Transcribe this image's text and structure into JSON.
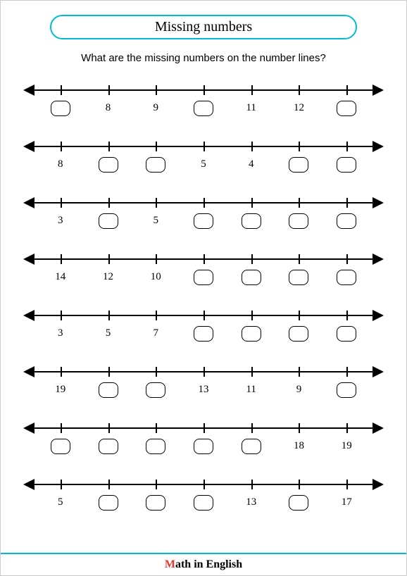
{
  "title": "Missing numbers",
  "question": "What are the missing numbers on the number lines?",
  "footer_m": "M",
  "footer_rest": "ath in English",
  "layout": {
    "tick_positions_pct": [
      10,
      23.33,
      36.67,
      50,
      63.33,
      76.67,
      90
    ],
    "line_color": "#000000",
    "border_color": "#00bcd4",
    "blank_border_radius": 8
  },
  "lines": [
    {
      "values": [
        null,
        "8",
        "9",
        null,
        "11",
        "12",
        null
      ]
    },
    {
      "values": [
        "8",
        null,
        null,
        "5",
        "4",
        null,
        null
      ]
    },
    {
      "values": [
        "3",
        null,
        "5",
        null,
        null,
        null,
        null
      ]
    },
    {
      "values": [
        "14",
        "12",
        "10",
        null,
        null,
        null,
        null
      ]
    },
    {
      "values": [
        "3",
        "5",
        "7",
        null,
        null,
        null,
        null
      ]
    },
    {
      "values": [
        "19",
        null,
        null,
        "13",
        "11",
        "9",
        null
      ]
    },
    {
      "values": [
        null,
        null,
        null,
        null,
        null,
        "18",
        "19"
      ]
    },
    {
      "values": [
        "5",
        null,
        null,
        null,
        "13",
        null,
        "17"
      ]
    }
  ]
}
